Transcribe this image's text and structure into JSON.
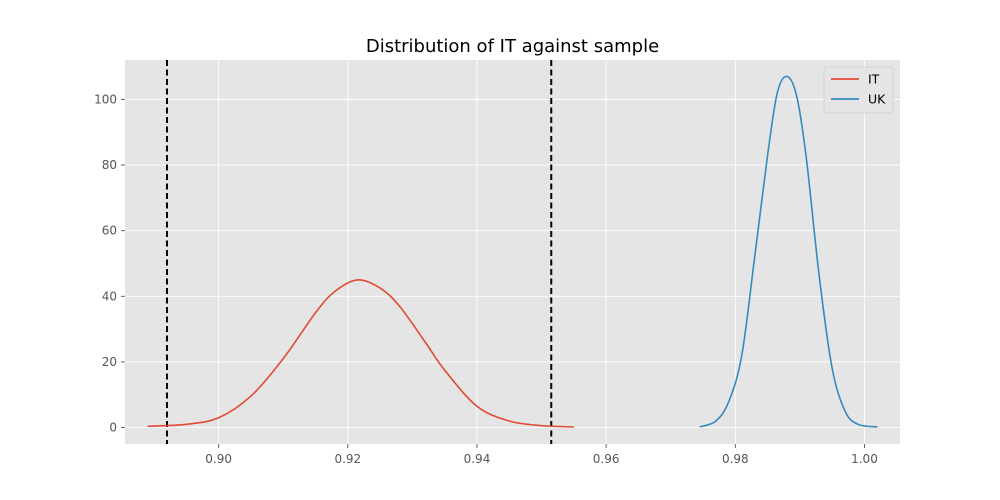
{
  "chart_data": {
    "type": "line",
    "title": "Distribution of IT against sample",
    "xlabel": "",
    "ylabel": "",
    "xlim": [
      0.8855,
      1.0055
    ],
    "ylim": [
      -5,
      112
    ],
    "xticks": [
      0.9,
      0.92,
      0.94,
      0.96,
      0.98,
      1.0
    ],
    "xtick_labels": [
      "0.90",
      "0.92",
      "0.94",
      "0.96",
      "0.98",
      "1.00"
    ],
    "yticks": [
      0,
      20,
      40,
      60,
      80,
      100
    ],
    "ytick_labels": [
      "0",
      "20",
      "40",
      "60",
      "80",
      "100"
    ],
    "grid": true,
    "legend_position": "top-right",
    "series": [
      {
        "name": "IT",
        "color": "#E24A33",
        "x": [
          0.889,
          0.895,
          0.9,
          0.905,
          0.91,
          0.915,
          0.918,
          0.9215,
          0.925,
          0.928,
          0.932,
          0.935,
          0.94,
          0.945,
          0.95,
          0.955
        ],
        "values": [
          0.4,
          1.0,
          3.0,
          9.6,
          21.0,
          35.0,
          41.5,
          45.0,
          42.5,
          37.0,
          26.0,
          17.5,
          6.5,
          2.0,
          0.6,
          0.2
        ]
      },
      {
        "name": "UK",
        "color": "#348ABD",
        "x": [
          0.9745,
          0.977,
          0.979,
          0.981,
          0.983,
          0.985,
          0.9865,
          0.988,
          0.9895,
          0.991,
          0.993,
          0.995,
          0.997,
          0.999,
          1.002
        ],
        "values": [
          0.2,
          2.0,
          8.0,
          22.0,
          52.0,
          83.0,
          102.0,
          107.0,
          101.0,
          82.0,
          46.0,
          18.0,
          5.0,
          1.0,
          0.2
        ]
      }
    ],
    "vlines": [
      {
        "x": 0.892,
        "color": "#000000",
        "style": "dashed"
      },
      {
        "x": 0.9515,
        "color": "#000000",
        "style": "dashed"
      }
    ]
  }
}
